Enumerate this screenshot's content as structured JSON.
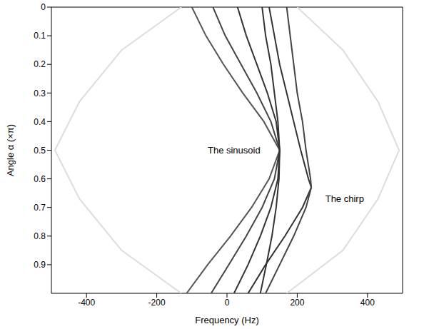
{
  "chart_data": {
    "type": "line",
    "xlabel": "Frequency (Hz)",
    "ylabel": "Angle α (×π)",
    "xlim": [
      -500,
      500
    ],
    "xticks": [
      -400,
      -200,
      0,
      200,
      400
    ],
    "ylim": [
      0,
      1
    ],
    "yticks": [
      0,
      0.1,
      0.2,
      0.3,
      0.4,
      0.5,
      0.6,
      0.7,
      0.8,
      0.9
    ],
    "marker": "none",
    "line_style": "solid",
    "series": [
      {
        "color": "#dddddd",
        "x": [
          -130,
          -300,
          -420,
          -490,
          -420,
          -300,
          -130
        ],
        "y": [
          0,
          0.15,
          0.33,
          0.5,
          0.67,
          0.85,
          1
        ]
      },
      {
        "color": "#dddddd",
        "x": [
          200,
          330,
          430,
          490,
          430,
          330,
          170
        ],
        "y": [
          0,
          0.15,
          0.33,
          0.5,
          0.67,
          0.85,
          1
        ]
      },
      {
        "color": "#555555",
        "x": [
          -100,
          -60,
          -10,
          45,
          105,
          150,
          120,
          70,
          10,
          -55,
          -115
        ],
        "y": [
          0,
          0.1,
          0.2,
          0.3,
          0.4,
          0.5,
          0.6,
          0.7,
          0.8,
          0.9,
          1
        ]
      },
      {
        "color": "#444444",
        "x": [
          -40,
          -5,
          40,
          85,
          125,
          150,
          135,
          100,
          55,
          5,
          -45
        ],
        "y": [
          0,
          0.1,
          0.2,
          0.3,
          0.4,
          0.5,
          0.6,
          0.7,
          0.8,
          0.9,
          1
        ]
      },
      {
        "color": "#333333",
        "x": [
          30,
          55,
          85,
          115,
          140,
          150,
          145,
          125,
          95,
          60,
          20
        ],
        "y": [
          0,
          0.1,
          0.2,
          0.3,
          0.4,
          0.5,
          0.6,
          0.7,
          0.8,
          0.9,
          1
        ]
      },
      {
        "color": "#333333",
        "x": [
          100,
          110,
          125,
          135,
          145,
          150,
          148,
          140,
          128,
          112,
          95
        ],
        "y": [
          0,
          0.1,
          0.2,
          0.3,
          0.4,
          0.5,
          0.6,
          0.7,
          0.8,
          0.9,
          1
        ]
      },
      {
        "color": "#333333",
        "x": [
          120,
          135,
          150,
          170,
          190,
          210,
          232,
          240,
          215,
          165,
          110,
          60
        ],
        "y": [
          0,
          0.1,
          0.2,
          0.3,
          0.4,
          0.5,
          0.6,
          0.63,
          0.7,
          0.8,
          0.9,
          1
        ]
      },
      {
        "color": "#444444",
        "x": [
          170,
          180,
          190,
          200,
          215,
          225,
          238,
          240,
          225,
          190,
          150,
          110
        ],
        "y": [
          0,
          0.1,
          0.2,
          0.3,
          0.4,
          0.5,
          0.6,
          0.63,
          0.7,
          0.8,
          0.9,
          1
        ]
      }
    ],
    "annotations": [
      {
        "text": "The sinusoid",
        "x": 20,
        "y": 0.5
      },
      {
        "text": "The chirp",
        "x": 335,
        "y": 0.67
      }
    ]
  }
}
